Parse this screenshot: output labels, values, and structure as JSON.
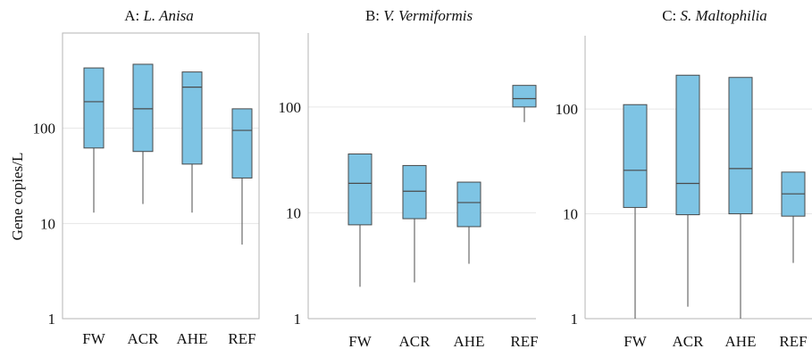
{
  "y_axis_label": "Gene copies/L",
  "colors": {
    "box_fill": "#7ec4e4",
    "box_stroke": "#4a4a4a",
    "frame": "#b5b5b5",
    "grid": "#e6e6e6"
  },
  "chart_data": [
    {
      "type": "boxplot",
      "title_prefix": "A: ",
      "title_italic": "L. Anisa",
      "scale": "log",
      "ylim": [
        1,
        1000
      ],
      "yticks": [
        "1",
        "10",
        "100"
      ],
      "ytick_values": [
        1,
        10,
        100
      ],
      "grid": [
        10,
        100
      ],
      "frame": "full",
      "categories": [
        "FW",
        "ACR",
        "AHE",
        "REF"
      ],
      "boxes": [
        {
          "whisker_low": 13,
          "q1": 62,
          "median": 190,
          "q3": 430,
          "whisker_high": 430
        },
        {
          "whisker_low": 16,
          "q1": 57,
          "median": 160,
          "q3": 470,
          "whisker_high": 470
        },
        {
          "whisker_low": 13,
          "q1": 42,
          "median": 270,
          "q3": 390,
          "whisker_high": 390
        },
        {
          "whisker_low": 6,
          "q1": 30,
          "median": 95,
          "q3": 160,
          "whisker_high": 160
        }
      ]
    },
    {
      "type": "boxplot",
      "title_prefix": "B: ",
      "title_italic": "V. Vermiformis",
      "scale": "log",
      "ylim": [
        1,
        500
      ],
      "yticks": [
        "1",
        "10",
        "100"
      ],
      "ytick_values": [
        1,
        10,
        100
      ],
      "grid": [
        10,
        100
      ],
      "frame": "left-bottom",
      "categories": [
        "FW",
        "ACR",
        "AHE",
        "REF"
      ],
      "boxes": [
        {
          "whisker_low": 2,
          "q1": 7.7,
          "median": 19,
          "q3": 36,
          "whisker_high": 36
        },
        {
          "whisker_low": 2.2,
          "q1": 8.8,
          "median": 16,
          "q3": 28,
          "whisker_high": 28
        },
        {
          "whisker_low": 3.3,
          "q1": 7.4,
          "median": 12.5,
          "q3": 19.5,
          "whisker_high": 19.5
        },
        {
          "whisker_low": 72,
          "q1": 100,
          "median": 120,
          "q3": 160,
          "whisker_high": 160
        }
      ]
    },
    {
      "type": "boxplot",
      "title_prefix": "C: ",
      "title_italic": "S. Maltophilia",
      "scale": "log",
      "ylim": [
        1,
        500
      ],
      "yticks": [
        "1",
        "10",
        "100"
      ],
      "ytick_values": [
        1,
        10,
        100
      ],
      "grid": [
        10,
        100
      ],
      "frame": "left-bottom",
      "categories": [
        "FW",
        "ACR",
        "AHE",
        "REF"
      ],
      "boxes": [
        {
          "whisker_low": 1,
          "q1": 11.5,
          "median": 26,
          "q3": 110,
          "whisker_high": 110
        },
        {
          "whisker_low": 1.3,
          "q1": 9.8,
          "median": 19.5,
          "q3": 210,
          "whisker_high": 210
        },
        {
          "whisker_low": 1,
          "q1": 10,
          "median": 27,
          "q3": 200,
          "whisker_high": 200
        },
        {
          "whisker_low": 3.4,
          "q1": 9.5,
          "median": 15.5,
          "q3": 25,
          "whisker_high": 25
        }
      ]
    }
  ]
}
